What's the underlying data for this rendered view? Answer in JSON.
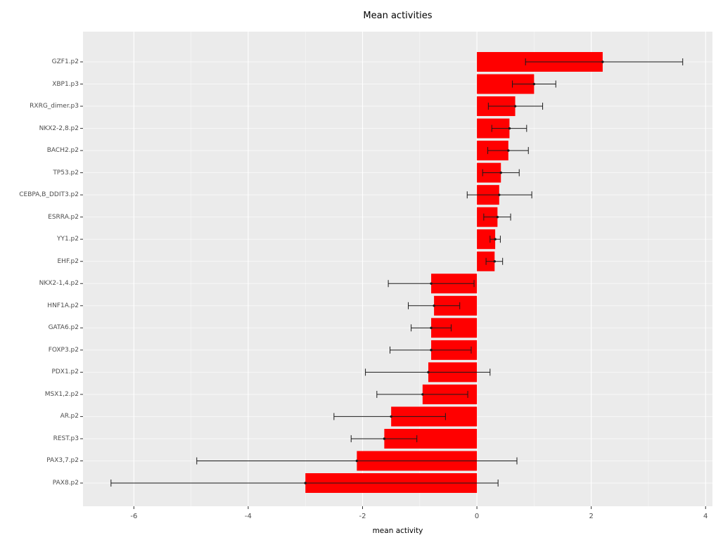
{
  "title": "Mean activities",
  "colors": {
    "bar": "#FF0000",
    "panel_bg": "#EBEBEB",
    "grid_major": "#FFFFFF",
    "grid_minor": "#F7F7F7",
    "axis_text": "#4D4D4D",
    "tick": "#333333",
    "error_bar": "#1A1A1A"
  },
  "chart_data": {
    "type": "bar",
    "orientation": "horizontal",
    "title": "Mean activities",
    "xlabel": "mean activity",
    "ylabel": "",
    "xlim": [
      -6.89,
      4.12
    ],
    "xticks": [
      -6,
      -4,
      -2,
      0,
      2,
      4
    ],
    "grid": true,
    "legend": false,
    "categories": [
      "GZF1.p2",
      "XBP1.p3",
      "RXRG_dimer.p3",
      "NKX2-2,8.p2",
      "BACH2.p2",
      "TP53.p2",
      "CEBPA,B_DDIT3.p2",
      "ESRRA.p2",
      "YY1.p2",
      "EHF.p2",
      "NKX2-1,4.p2",
      "HNF1A.p2",
      "GATA6.p2",
      "FOXP3.p2",
      "PDX1.p2",
      "MSX1,2.p2",
      "AR.p2",
      "REST.p3",
      "PAX3,7.p2",
      "PAX8.p2"
    ],
    "values": [
      2.2,
      1.0,
      0.67,
      0.57,
      0.55,
      0.42,
      0.39,
      0.36,
      0.32,
      0.31,
      -0.8,
      -0.75,
      -0.8,
      -0.8,
      -0.85,
      -0.95,
      -1.5,
      -1.62,
      -2.1,
      -3.0
    ],
    "error_low": [
      0.85,
      0.62,
      0.2,
      0.26,
      0.19,
      0.1,
      -0.17,
      0.12,
      0.23,
      0.16,
      -1.55,
      -1.2,
      -1.15,
      -1.52,
      -1.95,
      -1.75,
      -2.5,
      -2.2,
      -4.9,
      -6.4
    ],
    "error_high": [
      3.6,
      1.38,
      1.15,
      0.87,
      0.9,
      0.74,
      0.96,
      0.59,
      0.41,
      0.45,
      -0.05,
      -0.3,
      -0.45,
      -0.1,
      0.23,
      -0.16,
      -0.55,
      -1.05,
      0.7,
      0.37
    ]
  }
}
